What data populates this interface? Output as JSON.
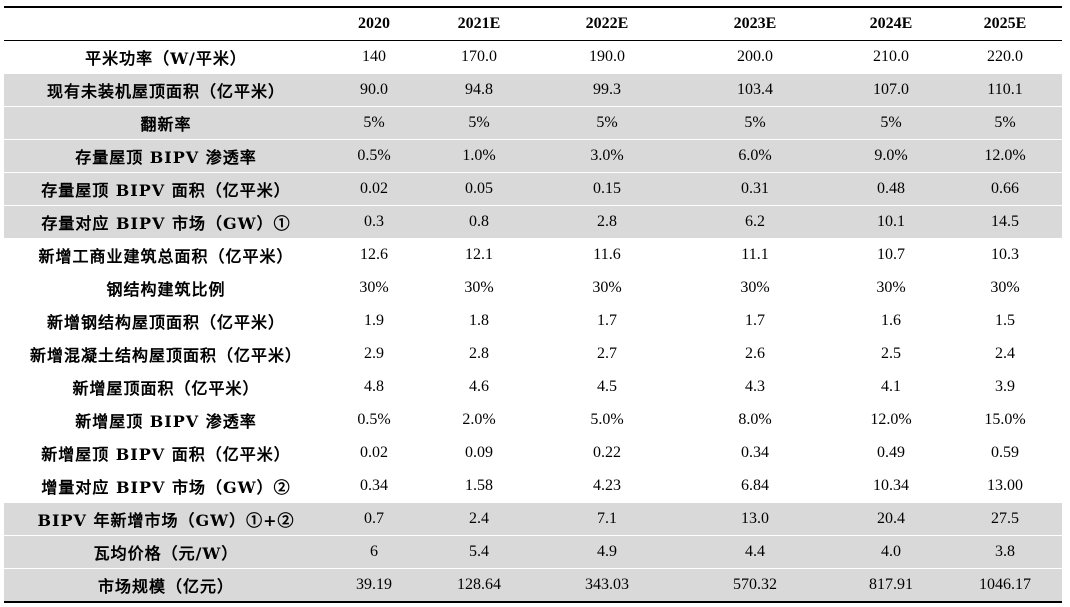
{
  "table": {
    "header": [
      "",
      "2020",
      "2021E",
      "2022E",
      "2023E",
      "2024E",
      "2025E"
    ],
    "rows": [
      {
        "label": "平米功率（W/平米）",
        "values": [
          "140",
          "170.0",
          "190.0",
          "200.0",
          "210.0",
          "220.0"
        ],
        "shaded": false
      },
      {
        "label": "现有未装机屋顶面积（亿平米）",
        "values": [
          "90.0",
          "94.8",
          "99.3",
          "103.4",
          "107.0",
          "110.1"
        ],
        "shaded": true
      },
      {
        "label": "翻新率",
        "values": [
          "5%",
          "5%",
          "5%",
          "5%",
          "5%",
          "5%"
        ],
        "shaded": true
      },
      {
        "label": "存量屋顶 BIPV 渗透率",
        "values": [
          "0.5%",
          "1.0%",
          "3.0%",
          "6.0%",
          "9.0%",
          "12.0%"
        ],
        "shaded": true
      },
      {
        "label": "存量屋顶 BIPV 面积（亿平米）",
        "values": [
          "0.02",
          "0.05",
          "0.15",
          "0.31",
          "0.48",
          "0.66"
        ],
        "shaded": true
      },
      {
        "label": "存量对应 BIPV 市场（GW）①",
        "values": [
          "0.3",
          "0.8",
          "2.8",
          "6.2",
          "10.1",
          "14.5"
        ],
        "shaded": true
      },
      {
        "label": "新增工商业建筑总面积（亿平米）",
        "values": [
          "12.6",
          "12.1",
          "11.6",
          "11.1",
          "10.7",
          "10.3"
        ],
        "shaded": false
      },
      {
        "label": "钢结构建筑比例",
        "values": [
          "30%",
          "30%",
          "30%",
          "30%",
          "30%",
          "30%"
        ],
        "shaded": false
      },
      {
        "label": "新增钢结构屋顶面积（亿平米）",
        "values": [
          "1.9",
          "1.8",
          "1.7",
          "1.7",
          "1.6",
          "1.5"
        ],
        "shaded": false
      },
      {
        "label": "新增混凝土结构屋顶面积（亿平米）",
        "values": [
          "2.9",
          "2.8",
          "2.7",
          "2.6",
          "2.5",
          "2.4"
        ],
        "shaded": false
      },
      {
        "label": "新增屋顶面积（亿平米）",
        "values": [
          "4.8",
          "4.6",
          "4.5",
          "4.3",
          "4.1",
          "3.9"
        ],
        "shaded": false
      },
      {
        "label": "新增屋顶 BIPV 渗透率",
        "values": [
          "0.5%",
          "2.0%",
          "5.0%",
          "8.0%",
          "12.0%",
          "15.0%"
        ],
        "shaded": false
      },
      {
        "label": "新增屋顶 BIPV 面积（亿平米）",
        "values": [
          "0.02",
          "0.09",
          "0.22",
          "0.34",
          "0.49",
          "0.59"
        ],
        "shaded": false
      },
      {
        "label": "增量对应 BIPV 市场（GW）②",
        "values": [
          "0.34",
          "1.58",
          "4.23",
          "6.84",
          "10.34",
          "13.00"
        ],
        "shaded": false
      },
      {
        "label": "BIPV 年新增市场（GW）①+②",
        "values": [
          "0.7",
          "2.4",
          "7.1",
          "13.0",
          "20.4",
          "27.5"
        ],
        "shaded": true
      },
      {
        "label": "瓦均价格（元/W）",
        "values": [
          "6",
          "5.4",
          "4.9",
          "4.4",
          "4.0",
          "3.8"
        ],
        "shaded": true
      },
      {
        "label": "市场规模（亿元）",
        "values": [
          "39.19",
          "128.64",
          "343.03",
          "570.32",
          "817.91",
          "1046.17"
        ],
        "shaded": true
      }
    ]
  }
}
